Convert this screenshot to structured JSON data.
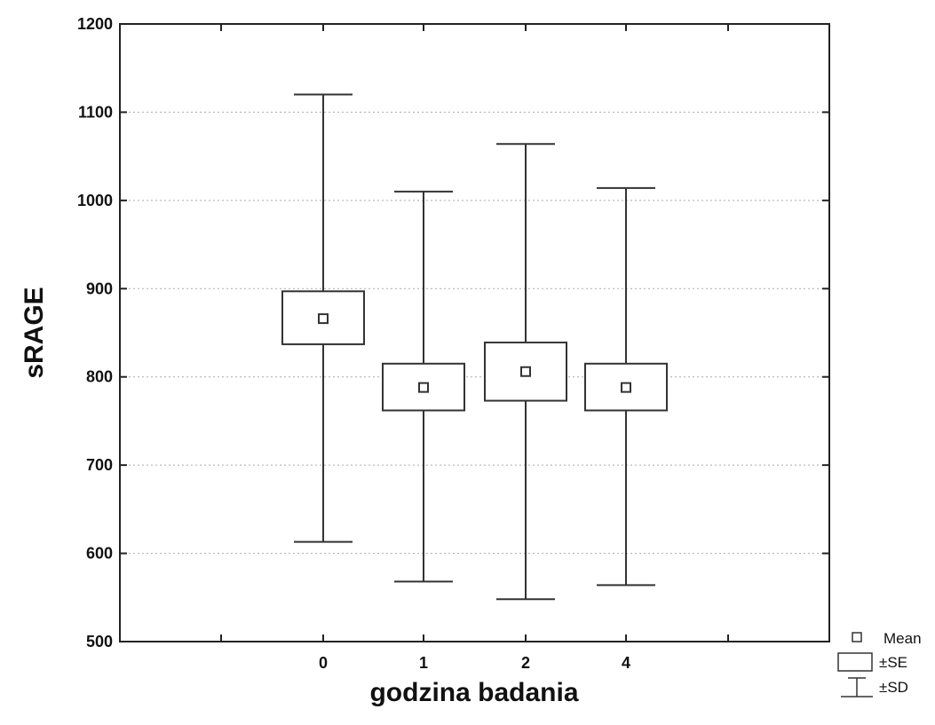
{
  "chart_data": {
    "type": "box",
    "xlabel": "godzina badania",
    "ylabel": "sRAGE",
    "ylim": [
      500,
      1200
    ],
    "yticks": [
      500,
      600,
      700,
      800,
      900,
      1000,
      1100,
      1200
    ],
    "grid": "horizontal dotted",
    "categories": [
      "0",
      "1",
      "2",
      "4"
    ],
    "series": [
      {
        "category": "0",
        "mean": 866,
        "se_low": 837,
        "se_high": 897,
        "sd_low": 613,
        "sd_high": 1120
      },
      {
        "category": "1",
        "mean": 788,
        "se_low": 762,
        "se_high": 815,
        "sd_low": 568,
        "sd_high": 1010
      },
      {
        "category": "2",
        "mean": 806,
        "se_low": 773,
        "se_high": 839,
        "sd_low": 548,
        "sd_high": 1064
      },
      {
        "category": "4",
        "mean": 788,
        "se_low": 762,
        "se_high": 815,
        "sd_low": 564,
        "sd_high": 1014
      }
    ],
    "legend": {
      "placement": "bottom-right",
      "items": [
        {
          "symbol": "square",
          "label": "Mean"
        },
        {
          "symbol": "box",
          "label": "±SE"
        },
        {
          "symbol": "whisker",
          "label": "±SD"
        }
      ]
    }
  }
}
